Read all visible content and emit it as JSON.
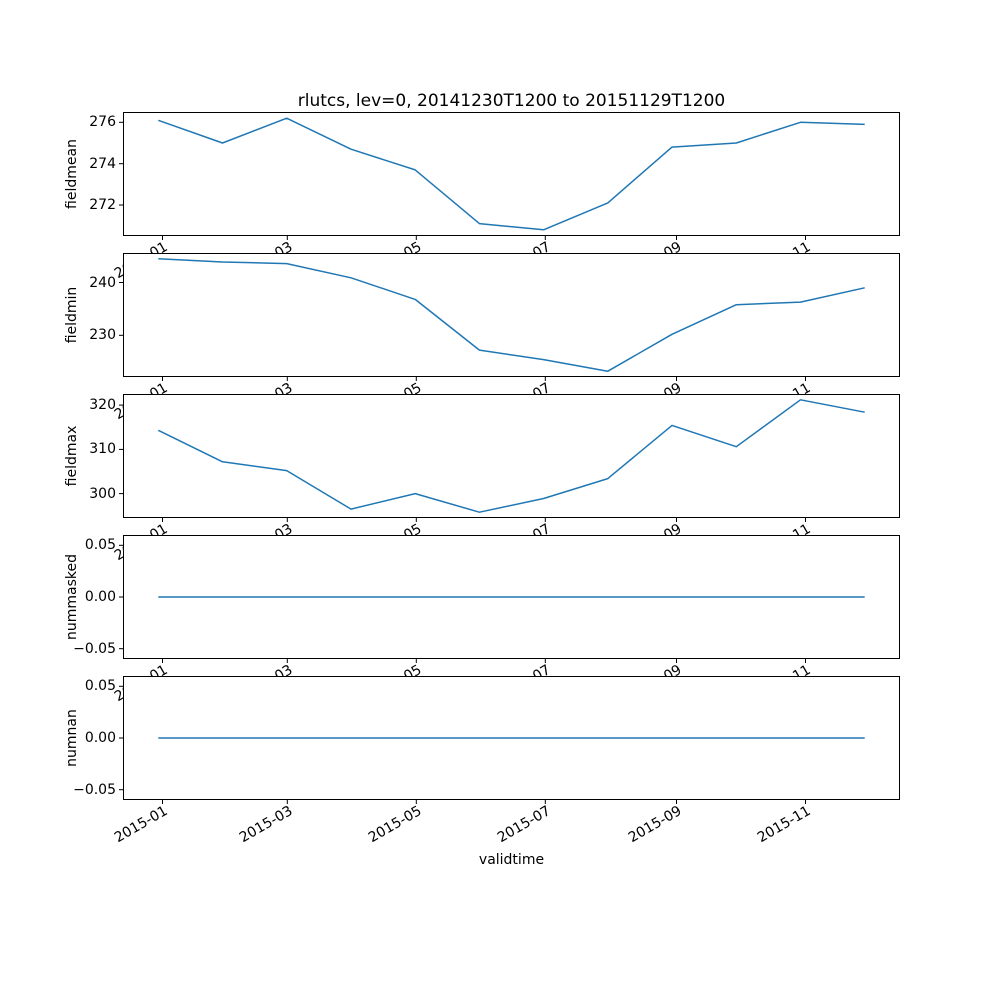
{
  "figure": {
    "background": "#ffffff",
    "frame_color": "#000000"
  },
  "chart_data": {
    "type": "line",
    "title": "rlutcs, lev=0, 20141230T1200 to 20151129T1200",
    "xlabel": "validtime",
    "line_color": "#1f77b4",
    "legend": "none",
    "grid": false,
    "x": [
      "2014-12-30",
      "2015-01-29",
      "2015-02-28",
      "2015-03-30",
      "2015-04-29",
      "2015-05-30",
      "2015-06-29",
      "2015-07-30",
      "2015-08-29",
      "2015-09-29",
      "2015-10-30",
      "2015-11-29"
    ],
    "x_ticks": [
      "2015-01",
      "2015-03",
      "2015-05",
      "2015-07",
      "2015-09",
      "2015-11"
    ],
    "subplots": [
      {
        "ylabel": "fieldmean",
        "yticks": [
          272,
          274,
          276
        ],
        "ytick_labels": [
          "272",
          "274",
          "276"
        ],
        "ylim": [
          270.5,
          276.5
        ],
        "values": [
          276.1,
          275.0,
          276.2,
          274.7,
          273.7,
          271.1,
          270.8,
          272.1,
          274.8,
          275.0,
          276.0,
          275.9
        ]
      },
      {
        "ylabel": "fieldmin",
        "yticks": [
          230,
          240
        ],
        "ytick_labels": [
          "230",
          "240"
        ],
        "ylim": [
          222.1,
          245.6
        ],
        "values": [
          244.5,
          243.9,
          243.6,
          240.9,
          236.8,
          227.2,
          225.4,
          223.2,
          230.2,
          235.8,
          236.3,
          239.0
        ]
      },
      {
        "ylabel": "fieldmax",
        "yticks": [
          300,
          310,
          320
        ],
        "ytick_labels": [
          "300",
          "310",
          "320"
        ],
        "ylim": [
          294.5,
          322.5
        ],
        "values": [
          314.3,
          307.2,
          305.2,
          296.5,
          300.0,
          295.8,
          298.9,
          303.4,
          315.4,
          310.6,
          321.2,
          318.4
        ]
      },
      {
        "ylabel": "nummasked",
        "yticks": [
          -0.05,
          0.0,
          0.05
        ],
        "ytick_labels": [
          "−0.05",
          "0.00",
          "0.05"
        ],
        "ylim": [
          -0.06,
          0.06
        ],
        "values": [
          0,
          0,
          0,
          0,
          0,
          0,
          0,
          0,
          0,
          0,
          0,
          0
        ]
      },
      {
        "ylabel": "numnan",
        "yticks": [
          -0.05,
          0.0,
          0.05
        ],
        "ytick_labels": [
          "−0.05",
          "0.00",
          "0.05"
        ],
        "ylim": [
          -0.06,
          0.06
        ],
        "values": [
          0,
          0,
          0,
          0,
          0,
          0,
          0,
          0,
          0,
          0,
          0,
          0
        ]
      }
    ]
  }
}
